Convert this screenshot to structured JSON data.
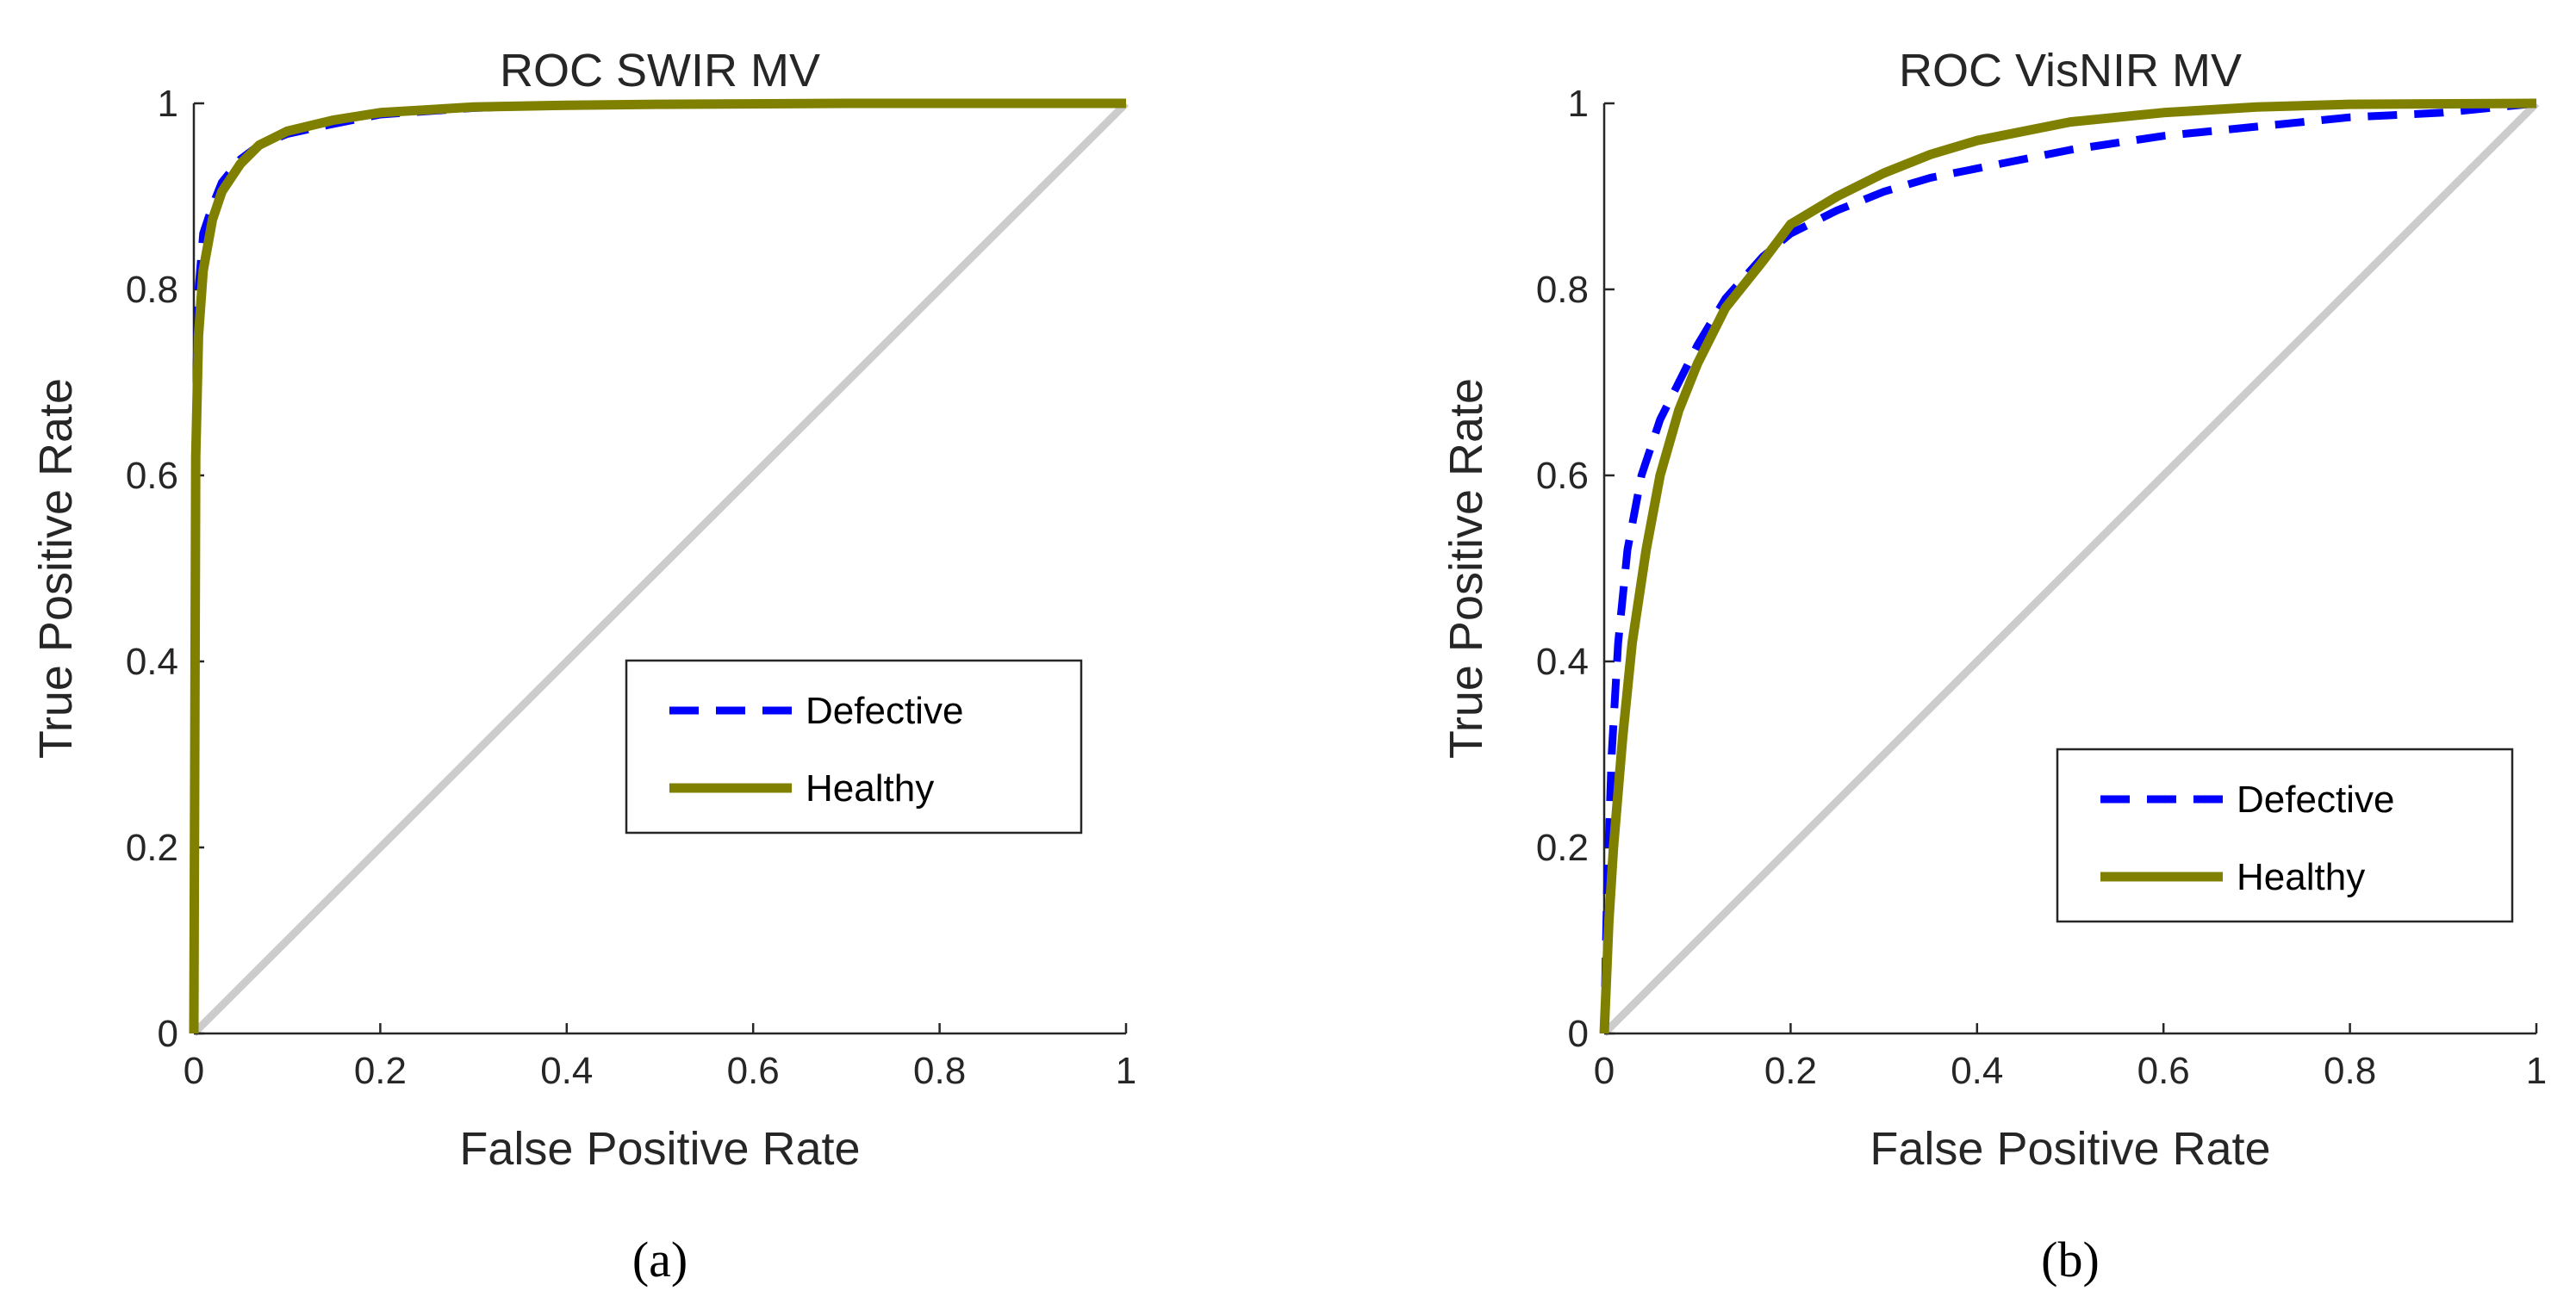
{
  "colors": {
    "defective": "#0000FF",
    "healthy": "#808000",
    "diagonal": "#CCCCCC",
    "axis": "#262626"
  },
  "chart_data": [
    {
      "type": "line",
      "title": "ROC SWIR MV",
      "xlabel": "False Positive Rate",
      "ylabel": "True Positive Rate",
      "subcaption": "(a)",
      "xlim": [
        0,
        1
      ],
      "ylim": [
        0,
        1
      ],
      "xticks": [
        "0",
        "0.2",
        "0.4",
        "0.6",
        "0.8",
        "1"
      ],
      "yticks": [
        "0",
        "0.2",
        "0.4",
        "0.6",
        "0.8",
        "1"
      ],
      "grid": false,
      "legend_position": "lower-right",
      "series": [
        {
          "name": "Defective",
          "style": "dashed",
          "x": [
            0,
            0.003,
            0.005,
            0.01,
            0.02,
            0.03,
            0.05,
            0.07,
            0.1,
            0.15,
            0.2,
            0.3,
            0.4,
            0.5,
            0.7,
            1.0
          ],
          "y": [
            0,
            0.72,
            0.8,
            0.86,
            0.89,
            0.915,
            0.94,
            0.955,
            0.967,
            0.978,
            0.988,
            0.995,
            0.998,
            0.999,
            1.0,
            1.0
          ]
        },
        {
          "name": "Healthy",
          "style": "solid",
          "x": [
            0,
            0.002,
            0.005,
            0.01,
            0.02,
            0.03,
            0.05,
            0.07,
            0.1,
            0.15,
            0.2,
            0.3,
            0.4,
            0.5,
            0.7,
            1.0
          ],
          "y": [
            0,
            0.62,
            0.75,
            0.82,
            0.875,
            0.905,
            0.935,
            0.955,
            0.97,
            0.982,
            0.99,
            0.996,
            0.998,
            0.999,
            1.0,
            1.0
          ]
        }
      ]
    },
    {
      "type": "line",
      "title": "ROC VisNIR MV",
      "xlabel": "False Positive Rate",
      "ylabel": "True Positive Rate",
      "subcaption": "(b)",
      "xlim": [
        0,
        1
      ],
      "ylim": [
        0,
        1
      ],
      "xticks": [
        "0",
        "0.2",
        "0.4",
        "0.6",
        "0.8",
        "1"
      ],
      "yticks": [
        "0",
        "0.2",
        "0.4",
        "0.6",
        "0.8",
        "1"
      ],
      "grid": false,
      "legend_position": "lower-right",
      "series": [
        {
          "name": "Defective",
          "style": "dashed",
          "x": [
            0,
            0.003,
            0.008,
            0.015,
            0.025,
            0.04,
            0.06,
            0.08,
            0.1,
            0.13,
            0.17,
            0.2,
            0.25,
            0.3,
            0.35,
            0.4,
            0.5,
            0.6,
            0.7,
            0.8,
            0.9,
            1.0
          ],
          "y": [
            0,
            0.15,
            0.3,
            0.42,
            0.52,
            0.6,
            0.66,
            0.7,
            0.74,
            0.79,
            0.835,
            0.86,
            0.885,
            0.905,
            0.92,
            0.93,
            0.95,
            0.965,
            0.975,
            0.985,
            0.99,
            1.0
          ]
        },
        {
          "name": "Healthy",
          "style": "solid",
          "x": [
            0,
            0.005,
            0.01,
            0.02,
            0.03,
            0.045,
            0.06,
            0.08,
            0.1,
            0.13,
            0.17,
            0.2,
            0.25,
            0.3,
            0.35,
            0.4,
            0.5,
            0.6,
            0.7,
            0.8,
            1.0
          ],
          "y": [
            0,
            0.12,
            0.2,
            0.32,
            0.42,
            0.52,
            0.6,
            0.67,
            0.72,
            0.78,
            0.83,
            0.87,
            0.9,
            0.925,
            0.945,
            0.96,
            0.98,
            0.99,
            0.996,
            0.999,
            1.0
          ]
        }
      ]
    }
  ]
}
